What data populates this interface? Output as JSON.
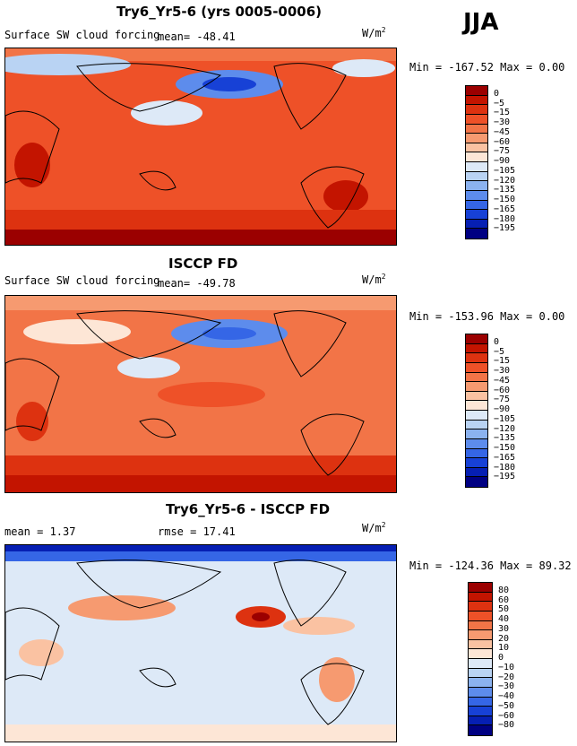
{
  "season": "JJA",
  "chart_data": [
    {
      "type": "heatmap",
      "title": "Try6_Yr5-6 (yrs 0005-0006)",
      "variable": "Surface SW cloud forcing",
      "mean_label": "mean= -48.41",
      "units": "W/m",
      "units_exp": "2",
      "min": -167.52,
      "max": 0.0,
      "minmax_label": "Min = -167.52 Max =    0.00",
      "levels": [
        0,
        -5,
        -15,
        -30,
        -45,
        -60,
        -75,
        -90,
        -105,
        -120,
        -135,
        -150,
        -165,
        -180,
        -195
      ],
      "level_labels": [
        "0",
        "−5",
        "−15",
        "−30",
        "−45",
        "−60",
        "−75",
        "−90",
        "−105",
        "−120",
        "−135",
        "−150",
        "−165",
        "−180",
        "−195"
      ],
      "colors": [
        "#9b0000",
        "#c31400",
        "#dd3210",
        "#ee5128",
        "#f27447",
        "#f69a70",
        "#fac2a2",
        "#fde6d6",
        "#dde9f7",
        "#b9d3f3",
        "#8bb2ef",
        "#5d8cec",
        "#3566e6",
        "#1741d6",
        "#061fb3",
        "#000082"
      ]
    },
    {
      "type": "heatmap",
      "title": "ISCCP FD",
      "variable": "Surface SW cloud forcing",
      "mean_label": "mean= -49.78",
      "units": "W/m",
      "units_exp": "2",
      "min": -153.96,
      "max": 0.0,
      "minmax_label": "Min = -153.96 Max =    0.00",
      "levels": [
        0,
        -5,
        -15,
        -30,
        -45,
        -60,
        -75,
        -90,
        -105,
        -120,
        -135,
        -150,
        -165,
        -180,
        -195
      ],
      "level_labels": [
        "0",
        "−5",
        "−15",
        "−30",
        "−45",
        "−60",
        "−75",
        "−90",
        "−105",
        "−120",
        "−135",
        "−150",
        "−165",
        "−180",
        "−195"
      ],
      "colors": [
        "#9b0000",
        "#c31400",
        "#dd3210",
        "#ee5128",
        "#f27447",
        "#f69a70",
        "#fac2a2",
        "#fde6d6",
        "#dde9f7",
        "#b9d3f3",
        "#8bb2ef",
        "#5d8cec",
        "#3566e6",
        "#1741d6",
        "#061fb3",
        "#000082"
      ]
    },
    {
      "type": "heatmap",
      "title": "Try6_Yr5-6 - ISCCP FD",
      "mean_label": "mean =    1.37",
      "rmse_label": "rmse =   17.41",
      "units": "W/m",
      "units_exp": "2",
      "min": -124.36,
      "max": 89.32,
      "minmax_label": "Min = -124.36 Max =  89.32",
      "levels": [
        80,
        60,
        50,
        40,
        30,
        20,
        10,
        0,
        -10,
        -20,
        -30,
        -40,
        -50,
        -60,
        -80
      ],
      "level_labels": [
        "80",
        "60",
        "50",
        "40",
        "30",
        "20",
        "10",
        "0",
        "−10",
        "−20",
        "−30",
        "−40",
        "−50",
        "−60",
        "−80"
      ],
      "colors": [
        "#9b0000",
        "#c31400",
        "#dd3210",
        "#ee5128",
        "#f27447",
        "#f69a70",
        "#fac2a2",
        "#fde6d6",
        "#dde9f7",
        "#b9d3f3",
        "#8bb2ef",
        "#5d8cec",
        "#3566e6",
        "#1741d6",
        "#061fb3",
        "#000082"
      ]
    }
  ]
}
